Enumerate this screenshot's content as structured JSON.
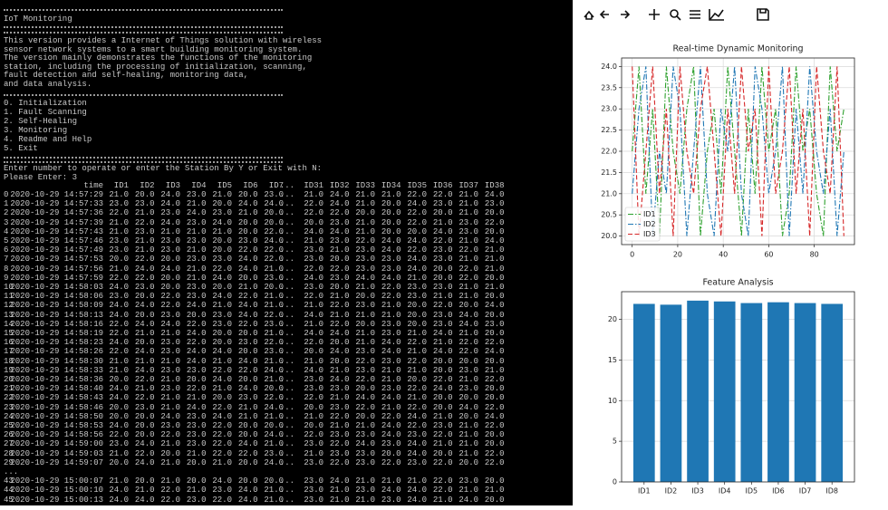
{
  "terminal": {
    "title": "IoT Monitoring",
    "intro": [
      "This version provides a Internet of Things solution with wireless",
      "sensor network systems to a smart building monitoring system.",
      "The version mainly demonstrates the functions of the monitoring",
      "station, including the processing of initialization, scanning,",
      "fault detection and self-healing, monitoring data,",
      "and data analysis."
    ],
    "menu": [
      "0. Initialization",
      "1. Fault Scanning",
      "2. Self-Healing",
      "3. Monitoring",
      "4. Readme and Help",
      "5. Exit"
    ],
    "prompt": [
      "Enter number to operate or enter the Station By Y or Exit with N:",
      "Please Enter: 3"
    ],
    "table": {
      "columns": [
        "time",
        "ID1",
        "ID2",
        "ID3",
        "ID4",
        "ID5",
        "ID6",
        "ID7",
        "...",
        "ID31",
        "ID32",
        "ID33",
        "ID34",
        "ID35",
        "ID36",
        "ID37",
        "ID38"
      ],
      "rows": [
        [
          "0",
          "2020-10-29 14:57:29",
          "21.0",
          "20.0",
          "24.0",
          "23.0",
          "21.0",
          "20.0",
          "23.0",
          "...",
          "21.0",
          "24.0",
          "21.0",
          "21.0",
          "22.0",
          "22.0",
          "21.0",
          "24.0"
        ],
        [
          "1",
          "2020-10-29 14:57:33",
          "23.0",
          "23.0",
          "24.0",
          "21.0",
          "20.0",
          "24.0",
          "24.0",
          "...",
          "22.0",
          "24.0",
          "21.0",
          "20.0",
          "24.0",
          "23.0",
          "21.0",
          "23.0"
        ],
        [
          "2",
          "2020-10-29 14:57:36",
          "22.0",
          "21.0",
          "23.0",
          "24.0",
          "23.0",
          "21.0",
          "20.0",
          "...",
          "22.0",
          "22.0",
          "20.0",
          "20.0",
          "22.0",
          "20.0",
          "21.0",
          "20.0"
        ],
        [
          "3",
          "2020-10-29 14:57:39",
          "21.0",
          "22.0",
          "24.0",
          "23.0",
          "24.0",
          "20.0",
          "20.0",
          "...",
          "20.0",
          "23.0",
          "21.0",
          "20.0",
          "22.0",
          "21.0",
          "23.0",
          "22.0"
        ],
        [
          "4",
          "2020-10-29 14:57:43",
          "21.0",
          "23.0",
          "21.0",
          "21.0",
          "21.0",
          "20.0",
          "22.0",
          "...",
          "24.0",
          "24.0",
          "21.0",
          "20.0",
          "20.0",
          "24.0",
          "23.0",
          "20.0"
        ],
        [
          "5",
          "2020-10-29 14:57:46",
          "23.0",
          "21.0",
          "23.0",
          "23.0",
          "20.0",
          "23.0",
          "24.0",
          "...",
          "21.0",
          "23.0",
          "22.0",
          "24.0",
          "24.0",
          "22.0",
          "21.0",
          "24.0"
        ],
        [
          "6",
          "2020-10-29 14:57:49",
          "23.0",
          "21.0",
          "23.0",
          "21.0",
          "20.0",
          "22.0",
          "22.0",
          "...",
          "23.0",
          "21.0",
          "23.0",
          "24.0",
          "22.0",
          "23.0",
          "22.0",
          "21.0"
        ],
        [
          "7",
          "2020-10-29 14:57:53",
          "20.0",
          "22.0",
          "20.0",
          "23.0",
          "23.0",
          "24.0",
          "22.0",
          "...",
          "23.0",
          "20.0",
          "23.0",
          "23.0",
          "24.0",
          "23.0",
          "21.0",
          "21.0"
        ],
        [
          "8",
          "2020-10-29 14:57:56",
          "21.0",
          "24.0",
          "24.0",
          "21.0",
          "22.0",
          "24.0",
          "21.0",
          "...",
          "22.0",
          "22.0",
          "23.0",
          "23.0",
          "24.0",
          "20.0",
          "22.0",
          "21.0"
        ],
        [
          "9",
          "2020-10-29 14:57:59",
          "22.0",
          "22.0",
          "20.0",
          "21.0",
          "24.0",
          "20.0",
          "23.0",
          "...",
          "24.0",
          "23.0",
          "24.0",
          "24.0",
          "21.0",
          "20.0",
          "22.0",
          "20.0"
        ],
        [
          "10",
          "2020-10-29 14:58:03",
          "24.0",
          "23.0",
          "20.0",
          "23.0",
          "20.0",
          "21.0",
          "20.0",
          "...",
          "23.0",
          "20.0",
          "21.0",
          "22.0",
          "23.0",
          "23.0",
          "21.0",
          "21.0"
        ],
        [
          "11",
          "2020-10-29 14:58:06",
          "23.0",
          "20.0",
          "22.0",
          "23.0",
          "24.0",
          "22.0",
          "21.0",
          "...",
          "22.0",
          "21.0",
          "20.0",
          "22.0",
          "23.0",
          "21.0",
          "21.0",
          "20.0"
        ],
        [
          "12",
          "2020-10-29 14:58:09",
          "24.0",
          "24.0",
          "22.0",
          "24.0",
          "21.0",
          "24.0",
          "21.0",
          "...",
          "21.0",
          "22.0",
          "23.0",
          "21.0",
          "20.0",
          "22.0",
          "20.0",
          "24.0"
        ],
        [
          "13",
          "2020-10-29 14:58:13",
          "24.0",
          "20.0",
          "23.0",
          "20.0",
          "23.0",
          "24.0",
          "22.0",
          "...",
          "24.0",
          "21.0",
          "21.0",
          "21.0",
          "20.0",
          "23.0",
          "24.0",
          "20.0"
        ],
        [
          "14",
          "2020-10-29 14:58:16",
          "22.0",
          "24.0",
          "24.0",
          "22.0",
          "23.0",
          "22.0",
          "23.0",
          "...",
          "21.0",
          "22.0",
          "20.0",
          "23.0",
          "20.0",
          "23.0",
          "24.0",
          "23.0"
        ],
        [
          "15",
          "2020-10-29 14:58:19",
          "22.0",
          "21.0",
          "21.0",
          "24.0",
          "20.0",
          "20.0",
          "21.0",
          "...",
          "24.0",
          "24.0",
          "21.0",
          "23.0",
          "21.0",
          "24.0",
          "21.0",
          "20.0"
        ],
        [
          "16",
          "2020-10-29 14:58:23",
          "24.0",
          "20.0",
          "23.0",
          "22.0",
          "20.0",
          "23.0",
          "22.0",
          "...",
          "22.0",
          "20.0",
          "21.0",
          "24.0",
          "22.0",
          "21.0",
          "22.0",
          "22.0"
        ],
        [
          "17",
          "2020-10-29 14:58:26",
          "22.0",
          "24.0",
          "23.0",
          "24.0",
          "24.0",
          "20.0",
          "23.0",
          "...",
          "20.0",
          "24.0",
          "23.0",
          "24.0",
          "21.0",
          "24.0",
          "22.0",
          "24.0"
        ],
        [
          "18",
          "2020-10-29 14:58:30",
          "21.0",
          "21.0",
          "21.0",
          "24.0",
          "21.0",
          "24.0",
          "21.0",
          "...",
          "21.0",
          "20.0",
          "22.0",
          "23.0",
          "22.0",
          "20.0",
          "20.0",
          "20.0"
        ],
        [
          "19",
          "2020-10-29 14:58:33",
          "21.0",
          "24.0",
          "23.0",
          "23.0",
          "22.0",
          "22.0",
          "24.0",
          "...",
          "24.0",
          "21.0",
          "23.0",
          "21.0",
          "21.0",
          "20.0",
          "23.0",
          "21.0"
        ],
        [
          "20",
          "2020-10-29 14:58:36",
          "20.0",
          "22.0",
          "21.0",
          "20.0",
          "24.0",
          "20.0",
          "21.0",
          "...",
          "23.0",
          "24.0",
          "22.0",
          "21.0",
          "20.0",
          "22.0",
          "21.0",
          "22.0"
        ],
        [
          "21",
          "2020-10-29 14:58:40",
          "24.0",
          "21.0",
          "23.0",
          "22.0",
          "21.0",
          "24.0",
          "20.0",
          "...",
          "23.0",
          "23.0",
          "20.0",
          "23.0",
          "22.0",
          "24.0",
          "23.0",
          "20.0"
        ],
        [
          "22",
          "2020-10-29 14:58:43",
          "24.0",
          "22.0",
          "21.0",
          "21.0",
          "20.0",
          "23.0",
          "22.0",
          "...",
          "22.0",
          "21.0",
          "24.0",
          "24.0",
          "21.0",
          "20.0",
          "20.0",
          "20.0"
        ],
        [
          "23",
          "2020-10-29 14:58:46",
          "20.0",
          "23.0",
          "21.0",
          "24.0",
          "22.0",
          "21.0",
          "24.0",
          "...",
          "20.0",
          "23.0",
          "22.0",
          "21.0",
          "22.0",
          "20.0",
          "24.0",
          "22.0"
        ],
        [
          "24",
          "2020-10-29 14:58:50",
          "20.0",
          "20.0",
          "24.0",
          "23.0",
          "24.0",
          "21.0",
          "21.0",
          "...",
          "21.0",
          "22.0",
          "20.0",
          "22.0",
          "24.0",
          "21.0",
          "20.0",
          "24.0"
        ],
        [
          "25",
          "2020-10-29 14:58:53",
          "24.0",
          "20.0",
          "23.0",
          "23.0",
          "22.0",
          "20.0",
          "20.0",
          "...",
          "20.0",
          "21.0",
          "21.0",
          "24.0",
          "22.0",
          "23.0",
          "21.0",
          "22.0"
        ],
        [
          "26",
          "2020-10-29 14:58:56",
          "22.0",
          "20.0",
          "22.0",
          "23.0",
          "22.0",
          "20.0",
          "24.0",
          "...",
          "22.0",
          "23.0",
          "23.0",
          "24.0",
          "23.0",
          "22.0",
          "21.0",
          "20.0"
        ],
        [
          "27",
          "2020-10-29 14:59:00",
          "23.0",
          "24.0",
          "21.0",
          "23.0",
          "22.0",
          "24.0",
          "21.0",
          "...",
          "23.0",
          "22.0",
          "24.0",
          "23.0",
          "24.0",
          "21.0",
          "21.0",
          "20.0"
        ],
        [
          "28",
          "2020-10-29 14:59:03",
          "21.0",
          "22.0",
          "20.0",
          "21.0",
          "22.0",
          "22.0",
          "23.0",
          "...",
          "21.0",
          "23.0",
          "23.0",
          "20.0",
          "24.0",
          "20.0",
          "21.0",
          "22.0"
        ],
        [
          "29",
          "2020-10-29 14:59:07",
          "20.0",
          "24.0",
          "21.0",
          "20.0",
          "21.0",
          "20.0",
          "24.0",
          "...",
          "23.0",
          "22.0",
          "23.0",
          "22.0",
          "23.0",
          "22.0",
          "20.0",
          "22.0"
        ],
        [
          "..."
        ],
        [
          "43",
          "2020-10-29 15:00:07",
          "21.0",
          "20.0",
          "21.0",
          "20.0",
          "24.0",
          "20.0",
          "20.0",
          "...",
          "23.0",
          "24.0",
          "21.0",
          "21.0",
          "21.0",
          "22.0",
          "23.0",
          "20.0"
        ],
        [
          "44",
          "2020-10-29 15:00:10",
          "24.0",
          "21.0",
          "22.0",
          "21.0",
          "23.0",
          "24.0",
          "21.0",
          "...",
          "23.0",
          "21.0",
          "23.0",
          "24.0",
          "24.0",
          "22.0",
          "21.0",
          "21.0"
        ],
        [
          "45",
          "2020-10-29 15:00:13",
          "24.0",
          "24.0",
          "22.0",
          "23.0",
          "22.0",
          "24.0",
          "21.0",
          "...",
          "23.0",
          "21.0",
          "21.0",
          "23.0",
          "24.0",
          "21.0",
          "24.0",
          "20.0"
        ]
      ]
    }
  },
  "chart_data": [
    {
      "type": "line",
      "title": "Real-time Dynamic Monitoring",
      "x": [
        0,
        3,
        6,
        9,
        12,
        15,
        18,
        21,
        24,
        27,
        30,
        33,
        36,
        39,
        42,
        45,
        48,
        51,
        54,
        57,
        60,
        63,
        66,
        69,
        72,
        75,
        78,
        81,
        84,
        87,
        90,
        93
      ],
      "series": [
        {
          "name": "ID1",
          "color": "#2ca02c",
          "values": [
            22,
            24,
            21,
            23,
            20,
            24,
            22,
            21,
            23,
            24,
            20,
            22,
            23,
            21,
            24,
            22,
            20,
            23,
            21,
            24,
            22,
            23,
            20,
            21,
            24,
            22,
            23,
            21,
            20,
            24,
            22,
            23
          ]
        },
        {
          "name": "ID2",
          "color": "#1f77b4",
          "values": [
            21,
            23,
            24,
            20,
            22,
            21,
            24,
            23,
            20,
            22,
            24,
            21,
            20,
            23,
            22,
            24,
            21,
            20,
            24,
            23,
            21,
            22,
            24,
            20,
            23,
            21,
            24,
            22,
            21,
            23,
            20,
            22
          ]
        },
        {
          "name": "ID3",
          "color": "#d62728",
          "values": [
            24,
            20,
            22,
            24,
            21,
            23,
            20,
            24,
            22,
            21,
            23,
            24,
            22,
            20,
            23,
            21,
            24,
            22,
            23,
            20,
            24,
            21,
            22,
            24,
            21,
            23,
            20,
            24,
            22,
            21,
            24,
            20
          ]
        }
      ],
      "xlim": [
        -4.65,
        97.65
      ],
      "xticks": [
        0,
        20,
        40,
        60,
        80
      ],
      "ylim": [
        19.8,
        24.2
      ],
      "yticks": [
        {
          "value": 20,
          "label": "20.0"
        },
        20.5,
        {
          "value": 21,
          "label": "21.0"
        },
        21.5,
        {
          "value": 22,
          "label": "22.0"
        },
        22.5,
        {
          "value": 23,
          "label": "23.0"
        },
        23.5,
        {
          "value": 24,
          "label": "24.0"
        }
      ],
      "grid": true,
      "legend": "lower left"
    },
    {
      "type": "bar",
      "title": "Feature Analysis",
      "categories": [
        "ID1",
        "ID2",
        "ID3",
        "ID4",
        "ID5",
        "ID6",
        "ID7",
        "ID8"
      ],
      "values": [
        21.9,
        21.8,
        22.3,
        22.2,
        22.0,
        22.1,
        22.0,
        21.9
      ],
      "color": "#1f77b4",
      "ylim": [
        0,
        23.4
      ],
      "yticks": [
        0,
        5,
        10,
        15,
        20
      ],
      "grid": true
    }
  ]
}
